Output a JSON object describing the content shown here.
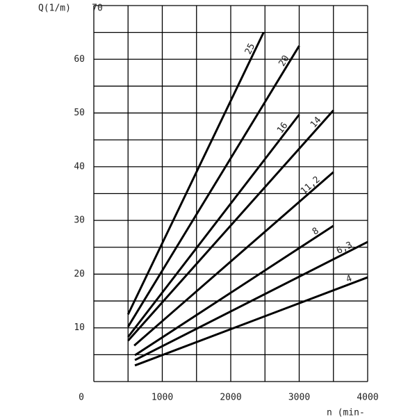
{
  "chart_data": {
    "type": "line",
    "y_label": "Q(1/m)",
    "x_label": "n (min-",
    "xlim": [
      0,
      4000
    ],
    "ylim": [
      0,
      70
    ],
    "xticks": [
      0,
      1000,
      2000,
      3000,
      4000
    ],
    "yticks": [
      10,
      20,
      30,
      40,
      50,
      60,
      70
    ],
    "grid": true,
    "color": "#000000",
    "series": [
      {
        "name": "25",
        "x": [
          500,
          2480
        ],
        "values": [
          12.5,
          65
        ]
      },
      {
        "name": "20",
        "x": [
          500,
          3000
        ],
        "values": [
          10.2,
          62.5
        ]
      },
      {
        "name": "16",
        "x": [
          500,
          3000
        ],
        "values": [
          8.3,
          49.7
        ]
      },
      {
        "name": "14",
        "x": [
          500,
          3500
        ],
        "values": [
          7.6,
          50.5
        ]
      },
      {
        "name": "11,2",
        "x": [
          590,
          3500
        ],
        "values": [
          6.7,
          39
        ]
      },
      {
        "name": "8",
        "x": [
          600,
          3500
        ],
        "values": [
          4.9,
          29
        ]
      },
      {
        "name": "6,3",
        "x": [
          600,
          4000
        ],
        "values": [
          4,
          26
        ]
      },
      {
        "name": "4",
        "x": [
          600,
          4000
        ],
        "values": [
          3,
          19.4
        ]
      }
    ]
  }
}
